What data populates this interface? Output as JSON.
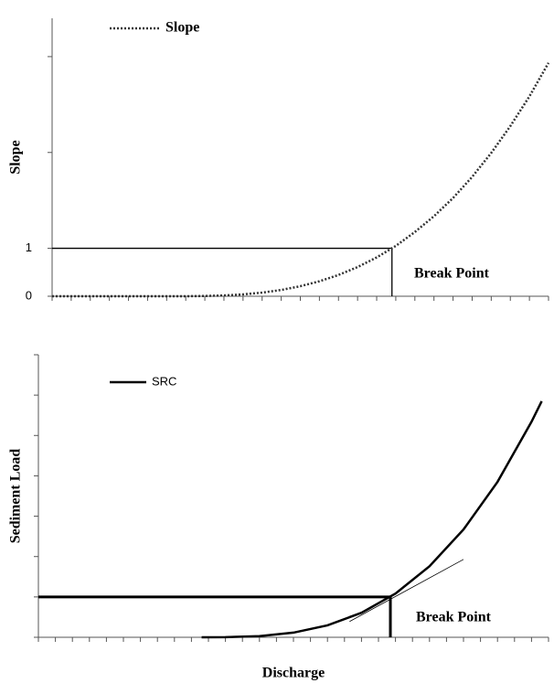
{
  "chart_data": [
    {
      "type": "line",
      "y_label": "Slope",
      "x": [
        0,
        1,
        2,
        3,
        4,
        5,
        6,
        7,
        8,
        9,
        10,
        11,
        12,
        13,
        14,
        15,
        16,
        17,
        18,
        19,
        20,
        21,
        22,
        23,
        24,
        25,
        26
      ],
      "series": [
        {
          "name": "Slope",
          "color": "#333333",
          "style": "dotted",
          "values": [
            0,
            0,
            0,
            0,
            0,
            0,
            0,
            0,
            0.005,
            0.016,
            0.039,
            0.076,
            0.131,
            0.209,
            0.312,
            0.444,
            0.609,
            0.81,
            1.05,
            1.34,
            1.67,
            2.05,
            2.49,
            2.99,
            3.55,
            4.17,
            4.87
          ]
        }
      ],
      "xlim": [
        0,
        26
      ],
      "ylim": [
        0,
        5.8
      ],
      "yticks": [
        0,
        1
      ],
      "ytick_marks": [
        3,
        5
      ],
      "xtick_marks": [
        0,
        1,
        2,
        3,
        4,
        5,
        6,
        7,
        8,
        9,
        10,
        11,
        12,
        13,
        14,
        15,
        16,
        17,
        18,
        19,
        20,
        21,
        22,
        23,
        24,
        25,
        26
      ],
      "break_point": {
        "x": 17.8,
        "y": 1,
        "label": "Break Point"
      }
    },
    {
      "type": "line",
      "x_label": "Discharge",
      "y_label": "Sediment Load",
      "x": [
        9.6,
        11,
        13,
        15,
        17,
        19,
        21,
        23,
        25,
        27,
        29,
        29.6
      ],
      "series": [
        {
          "name": "SRC",
          "color": "#000000",
          "style": "solid",
          "values": [
            0,
            0.002,
            0.029,
            0.115,
            0.296,
            0.607,
            1.083,
            1.759,
            2.67,
            3.85,
            5.34,
            5.85
          ]
        }
      ],
      "tangent": {
        "x": [
          18.3,
          25
        ],
        "y": [
          0.39,
          1.93
        ]
      },
      "xlim": [
        0,
        30
      ],
      "ylim": [
        0,
        7
      ],
      "ytick_marks": [
        0,
        1,
        2,
        3,
        4,
        5,
        6,
        7
      ],
      "xtick_marks": [
        0,
        1,
        2,
        3,
        4,
        5,
        6,
        7,
        8,
        9,
        10,
        11,
        12,
        13,
        14,
        15,
        16,
        17,
        18,
        19,
        20,
        21,
        22,
        23,
        24,
        25,
        26,
        27,
        28,
        29,
        30
      ],
      "break_point": {
        "x": 20.7,
        "y": 1,
        "label": "Break Point"
      }
    }
  ]
}
